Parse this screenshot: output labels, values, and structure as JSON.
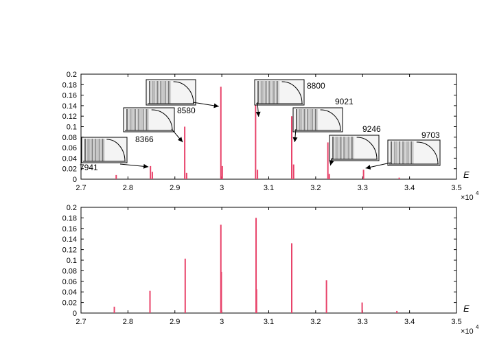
{
  "chart_data": [
    {
      "type": "bar",
      "xlabel": "E",
      "x_scale_note": "×10",
      "x_scale_exponent": "4",
      "xlim": [
        2.7,
        3.5
      ],
      "ylim": [
        0,
        0.2
      ],
      "xticks": [
        "2.7",
        "2.8",
        "2.9",
        "3",
        "3.1",
        "3.2",
        "3.3",
        "3.4",
        "3.5"
      ],
      "yticks": [
        "0",
        "0.02",
        "0.04",
        "0.06",
        "0.08",
        "0.1",
        "0.12",
        "0.14",
        "0.16",
        "0.18",
        "0.2"
      ],
      "color": "#e8436a",
      "x": [
        2.775,
        2.848,
        2.852,
        2.921,
        2.925,
        2.998,
        3.001,
        3.072,
        3.076,
        3.149,
        3.153,
        3.226,
        3.229,
        3.302,
        3.378
      ],
      "values": [
        0.008,
        0.025,
        0.014,
        0.1,
        0.012,
        0.176,
        0.025,
        0.16,
        0.018,
        0.12,
        0.028,
        0.07,
        0.01,
        0.018,
        0.003
      ],
      "annotations": [
        {
          "label": "7941",
          "peak_x": 2.848
        },
        {
          "label": "8366",
          "peak_x": 2.921
        },
        {
          "label": "8580",
          "peak_x": 2.998
        },
        {
          "label": "8800",
          "peak_x": 3.074
        },
        {
          "label": "9021",
          "peak_x": 3.151
        },
        {
          "label": "9246",
          "peak_x": 3.227
        },
        {
          "label": "9703",
          "peak_x": 3.302
        }
      ]
    },
    {
      "type": "bar",
      "xlabel": "E",
      "x_scale_note": "×10",
      "x_scale_exponent": "4",
      "xlim": [
        2.7,
        3.5
      ],
      "ylim": [
        0,
        0.2
      ],
      "xticks": [
        "2.7",
        "2.8",
        "2.9",
        "3",
        "3.1",
        "3.2",
        "3.3",
        "3.4",
        "3.5"
      ],
      "yticks": [
        "0",
        "0.02",
        "0.04",
        "0.06",
        "0.08",
        "0.1",
        "0.12",
        "0.14",
        "0.16",
        "0.18",
        "0.2"
      ],
      "color": "#e8436a",
      "x": [
        2.771,
        2.847,
        2.922,
        2.998,
        2.999,
        3.073,
        3.074,
        3.149,
        3.223,
        3.299,
        3.373
      ],
      "values": [
        0.012,
        0.042,
        0.103,
        0.167,
        0.078,
        0.18,
        0.045,
        0.132,
        0.062,
        0.02,
        0.004
      ]
    }
  ]
}
